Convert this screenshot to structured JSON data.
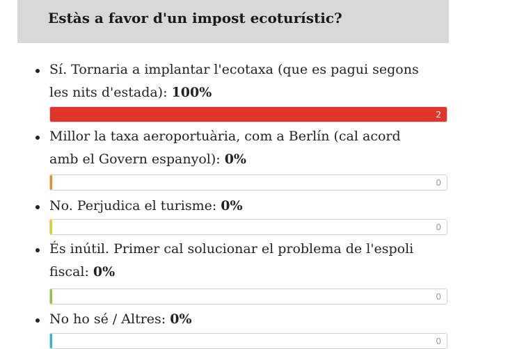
{
  "poll": {
    "title": "Estàs a favor d'un impost ecoturístic?",
    "options": [
      {
        "label": "Sí. Tornaria a implantar l'ecotaxa (que es pagui segons les nits d'estada):",
        "percent_label": "100%",
        "votes": "2",
        "fraction": 1.0,
        "color": "#e0352b"
      },
      {
        "label": "Millor la taxa aeroportuària, com a Berlín (cal acord amb el Govern espanyol):",
        "percent_label": "0%",
        "votes": "0",
        "fraction": 0,
        "color": "#f08a1c"
      },
      {
        "label": "No. Perjudica el turisme:",
        "percent_label": "0%",
        "votes": "0",
        "fraction": 0,
        "color": "#e3cc1a"
      },
      {
        "label": "És inútil. Primer cal solucionar el problema de l'espoli fiscal:",
        "percent_label": "0%",
        "votes": "0",
        "fraction": 0,
        "color": "#8cc43c"
      },
      {
        "label": "No ho sé / Altres:",
        "percent_label": "0%",
        "votes": "0",
        "fraction": 0,
        "color": "#2bb5e6"
      }
    ]
  }
}
